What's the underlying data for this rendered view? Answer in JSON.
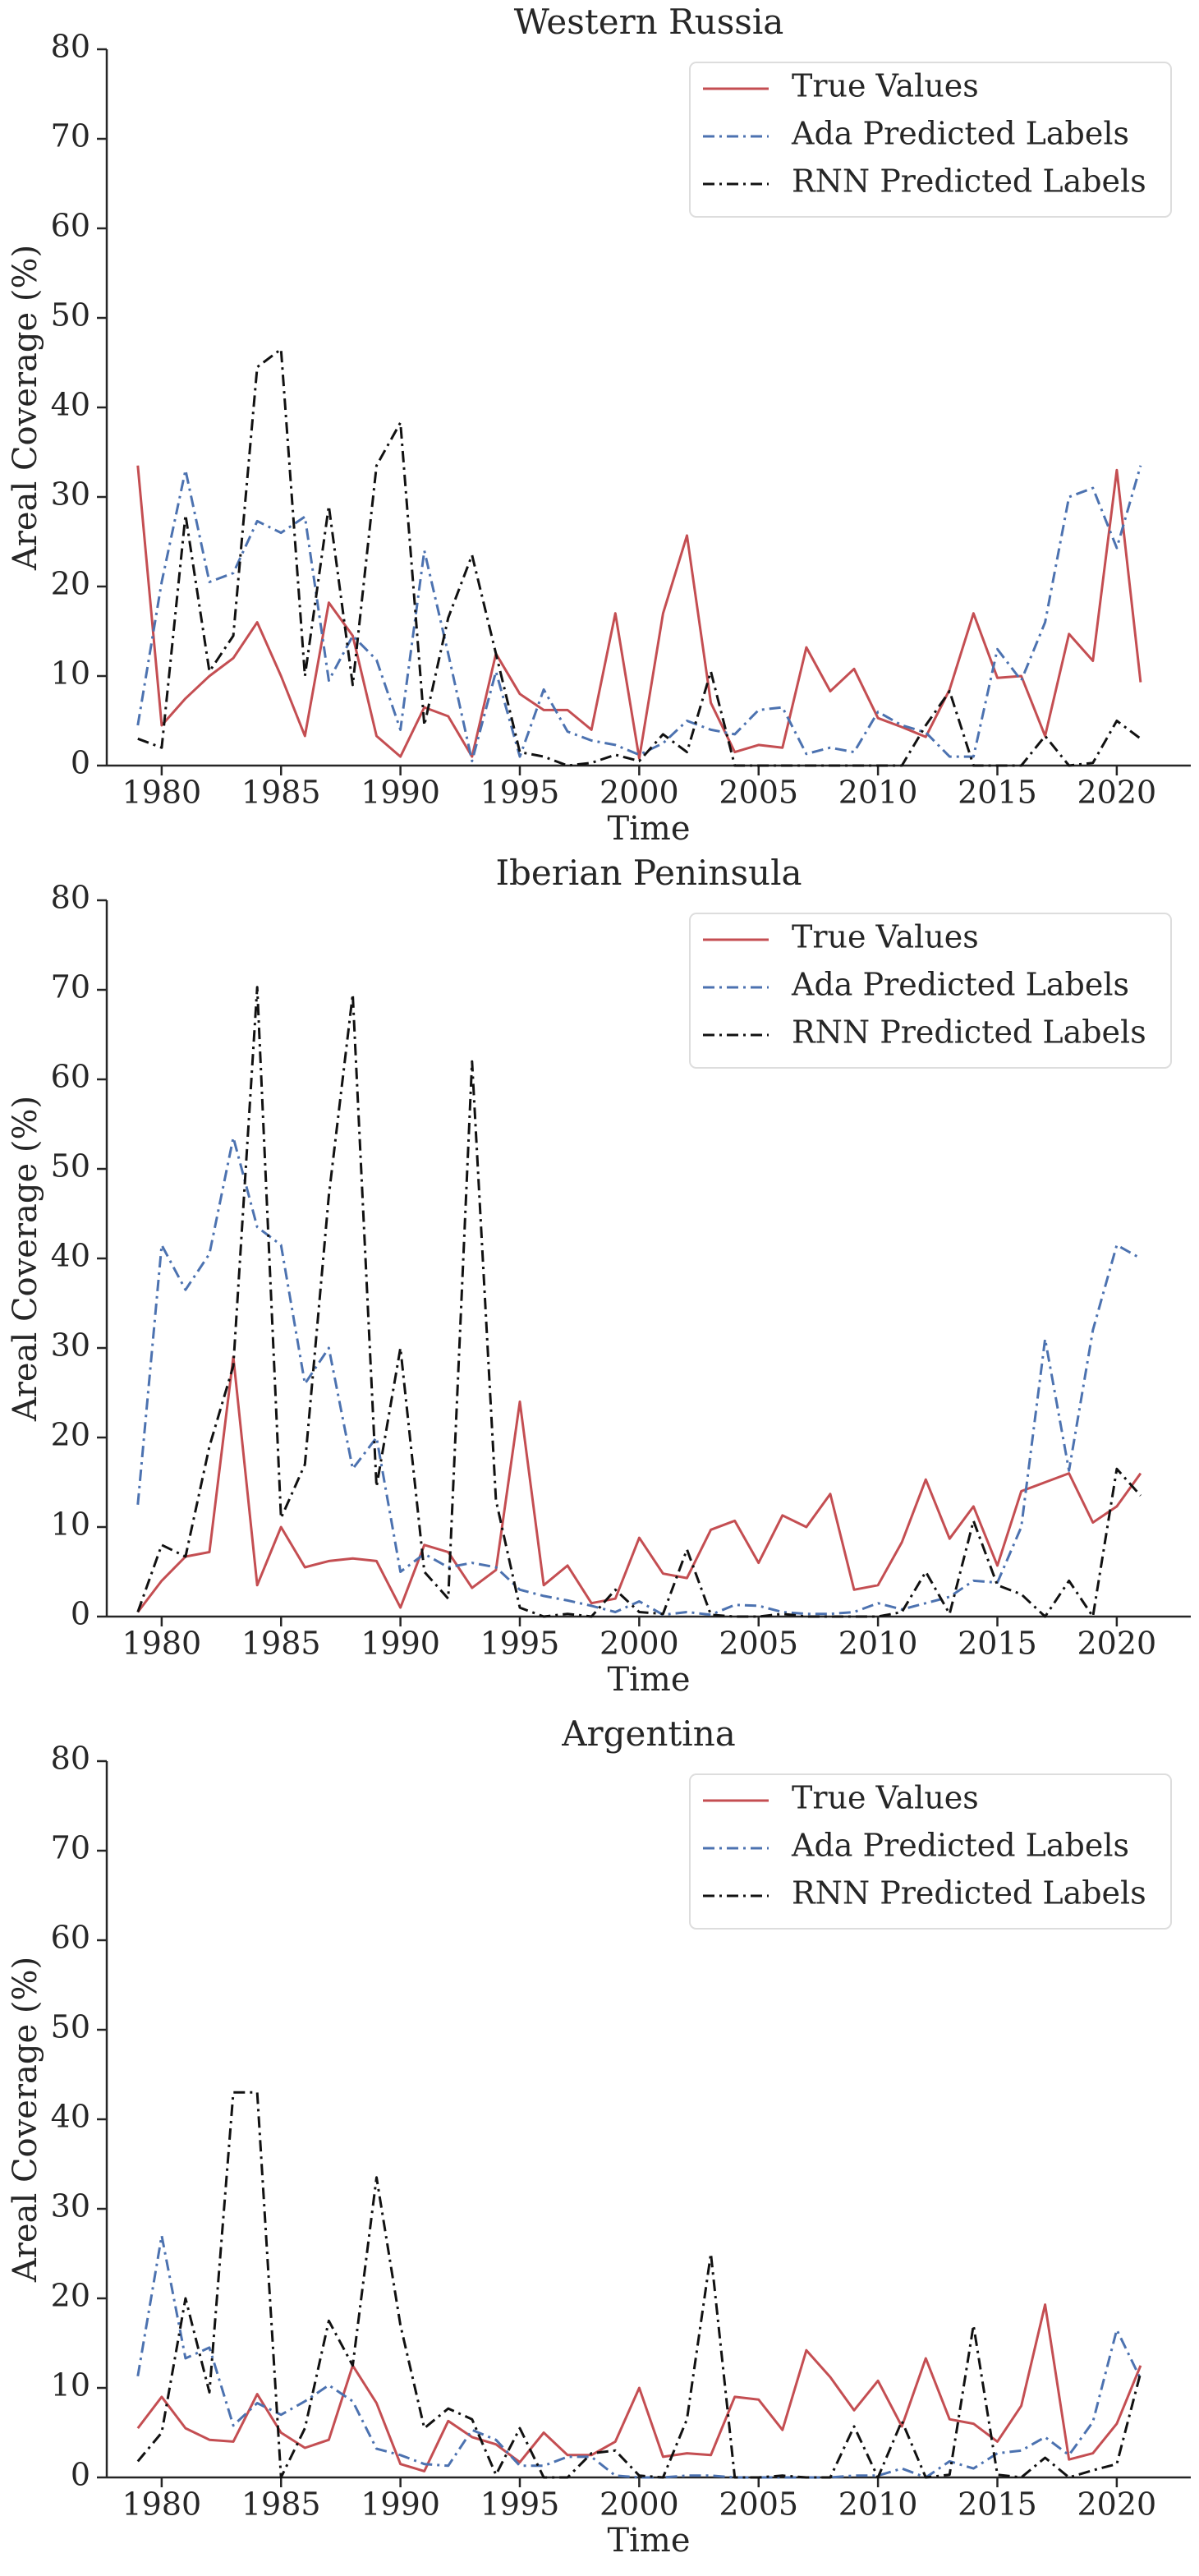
{
  "chart_data": [
    {
      "type": "line",
      "title": "Western Russia",
      "xlabel": "Time",
      "ylabel": "Areal Coverage (%)",
      "x": [
        1979,
        1980,
        1981,
        1982,
        1983,
        1984,
        1985,
        1986,
        1987,
        1988,
        1989,
        1990,
        1991,
        1992,
        1993,
        1994,
        1995,
        1996,
        1997,
        1998,
        1999,
        2000,
        2001,
        2002,
        2003,
        2004,
        2005,
        2006,
        2007,
        2008,
        2009,
        2010,
        2011,
        2012,
        2013,
        2014,
        2015,
        2016,
        2017,
        2018,
        2019,
        2020,
        2021
      ],
      "series": [
        {
          "name": "True Values",
          "color": "#c44e52",
          "style": "solid",
          "values": [
            33.5,
            4.5,
            7.5,
            10,
            12,
            16,
            10,
            3.3,
            18.2,
            14.5,
            3.3,
            1,
            6.5,
            5.5,
            1,
            12.5,
            8,
            6.2,
            6.2,
            4,
            17,
            0.8,
            17,
            25.7,
            7,
            1.5,
            2.3,
            2,
            13.2,
            8.3,
            10.8,
            5.3,
            4.3,
            3.2,
            8.5,
            17,
            9.8,
            10,
            3.3,
            14.7,
            11.7,
            33,
            9.3
          ]
        },
        {
          "name": "Ada Predicted Labels",
          "color": "#4c72b0",
          "style": "dashdot",
          "values": [
            4.5,
            20.5,
            33,
            20.5,
            21.5,
            27.3,
            26,
            27.8,
            9.5,
            14.5,
            11.8,
            4,
            24,
            12.5,
            0.5,
            10.5,
            1,
            8.5,
            3.8,
            2.8,
            2.3,
            1.2,
            2.5,
            5,
            4,
            3.5,
            6.2,
            6.5,
            1.3,
            2,
            1.5,
            6,
            4.5,
            3.7,
            1,
            1,
            13,
            9.5,
            16,
            30,
            31,
            24.3,
            33.5
          ]
        },
        {
          "name": "RNN Predicted Labels",
          "color": "#111111",
          "style": "dashdot",
          "values": [
            3,
            2,
            28,
            10.5,
            14.5,
            44.5,
            46.5,
            10,
            29,
            9,
            33.5,
            38.3,
            4.5,
            16.5,
            23.5,
            12.5,
            1.5,
            1,
            0,
            0.3,
            1.2,
            0.5,
            3.5,
            1.5,
            10.5,
            0,
            0,
            0,
            0,
            0,
            0,
            0,
            0,
            4.5,
            8.3,
            0,
            0,
            0,
            3.3,
            0,
            0.3,
            5,
            3
          ]
        }
      ],
      "xlim": [
        1977.7,
        2023.1
      ],
      "ylim": [
        0,
        80
      ],
      "xticks": [
        1980,
        1985,
        1990,
        1995,
        2000,
        2005,
        2010,
        2015,
        2020
      ],
      "yticks": [
        0,
        10,
        20,
        30,
        40,
        50,
        60,
        70,
        80
      ],
      "legend": "upper right"
    },
    {
      "type": "line",
      "title": "Iberian Peninsula",
      "xlabel": "Time",
      "ylabel": "Areal Coverage (%)",
      "x": [
        1979,
        1980,
        1981,
        1982,
        1983,
        1984,
        1985,
        1986,
        1987,
        1988,
        1989,
        1990,
        1991,
        1992,
        1993,
        1994,
        1995,
        1996,
        1997,
        1998,
        1999,
        2000,
        2001,
        2002,
        2003,
        2004,
        2005,
        2006,
        2007,
        2008,
        2009,
        2010,
        2011,
        2012,
        2013,
        2014,
        2015,
        2016,
        2017,
        2018,
        2019,
        2020,
        2021
      ],
      "series": [
        {
          "name": "True Values",
          "color": "#c44e52",
          "style": "solid",
          "values": [
            0.5,
            4,
            6.7,
            7.2,
            29,
            3.5,
            10,
            5.5,
            6.2,
            6.5,
            6.2,
            1,
            8,
            7.2,
            3.2,
            5.2,
            24,
            3.5,
            5.7,
            1.5,
            2,
            8.8,
            4.8,
            4.3,
            9.7,
            10.7,
            6,
            11.3,
            10,
            13.7,
            3,
            3.5,
            8.3,
            15.3,
            8.7,
            12.3,
            5.7,
            14,
            15,
            16,
            10.5,
            12.3,
            16
          ]
        },
        {
          "name": "Ada Predicted Labels",
          "color": "#4c72b0",
          "style": "dashdot",
          "values": [
            12.5,
            41.5,
            36.5,
            40.5,
            53.5,
            43.5,
            41.5,
            26,
            30,
            16.5,
            20,
            5,
            7,
            5.5,
            6,
            5.5,
            3,
            2.3,
            1.8,
            1.2,
            0.5,
            1.7,
            0.2,
            0.5,
            0.2,
            1.3,
            1.2,
            0.5,
            0.3,
            0.3,
            0.5,
            1.5,
            0.8,
            1.5,
            2.2,
            4,
            3.8,
            10,
            31,
            16.3,
            32,
            41.5,
            40
          ]
        },
        {
          "name": "RNN Predicted Labels",
          "color": "#111111",
          "style": "dashdot",
          "values": [
            0.5,
            8,
            6.7,
            19,
            28,
            70.3,
            11,
            17,
            47,
            69.5,
            14.5,
            30,
            5,
            2,
            62,
            13,
            1,
            0,
            0.3,
            0,
            3,
            0.5,
            0.3,
            7.5,
            0.2,
            0,
            0,
            0.3,
            0,
            0,
            0,
            0,
            0.5,
            5,
            0.3,
            10.7,
            3.5,
            2.5,
            0,
            4,
            0,
            16.5,
            13.5
          ]
        }
      ],
      "xlim": [
        1977.7,
        2023.1
      ],
      "ylim": [
        0,
        80
      ],
      "xticks": [
        1980,
        1985,
        1990,
        1995,
        2000,
        2005,
        2010,
        2015,
        2020
      ],
      "yticks": [
        0,
        10,
        20,
        30,
        40,
        50,
        60,
        70,
        80
      ],
      "legend": "upper right"
    },
    {
      "type": "line",
      "title": "Argentina",
      "xlabel": "Time",
      "ylabel": "Areal Coverage (%)",
      "x": [
        1979,
        1980,
        1981,
        1982,
        1983,
        1984,
        1985,
        1986,
        1987,
        1988,
        1989,
        1990,
        1991,
        1992,
        1993,
        1994,
        1995,
        1996,
        1997,
        1998,
        1999,
        2000,
        2001,
        2002,
        2003,
        2004,
        2005,
        2006,
        2007,
        2008,
        2009,
        2010,
        2011,
        2012,
        2013,
        2014,
        2015,
        2016,
        2017,
        2018,
        2019,
        2020,
        2021
      ],
      "series": [
        {
          "name": "True Values",
          "color": "#c44e52",
          "style": "solid",
          "values": [
            5.5,
            9,
            5.5,
            4.2,
            4,
            9.3,
            5,
            3.3,
            4.2,
            12.5,
            8.3,
            1.5,
            0.7,
            6.3,
            4.5,
            3.7,
            1.7,
            5,
            2.5,
            2.5,
            4,
            10,
            2.3,
            2.7,
            2.5,
            9,
            8.7,
            5.3,
            14.2,
            11.2,
            7.5,
            10.8,
            5.7,
            13.3,
            6.5,
            6,
            4,
            8,
            19.3,
            2,
            2.7,
            6,
            12.5
          ]
        },
        {
          "name": "Ada Predicted Labels",
          "color": "#4c72b0",
          "style": "dashdot",
          "values": [
            11.3,
            27,
            13.3,
            14.5,
            5.8,
            8.3,
            7,
            8.5,
            10.3,
            8.5,
            3.2,
            2.5,
            1.5,
            1.3,
            5.3,
            4.2,
            1.3,
            1.3,
            2.3,
            2.3,
            0.2,
            0,
            0,
            0.2,
            0.2,
            0,
            0,
            0,
            0,
            0,
            0.2,
            0.2,
            1,
            0,
            1.8,
            1,
            2.7,
            3,
            4.5,
            2.5,
            6.2,
            16.5,
            11
          ]
        },
        {
          "name": "RNN Predicted Labels",
          "color": "#111111",
          "style": "dashdot",
          "values": [
            1.8,
            5,
            20,
            9.5,
            43,
            43,
            0,
            5.5,
            17.5,
            12.5,
            33.5,
            17,
            5.5,
            7.7,
            6.5,
            0.3,
            5.5,
            0,
            0,
            2.7,
            3,
            0.2,
            0,
            6.5,
            25,
            0,
            0,
            0.2,
            0,
            0,
            5.7,
            0,
            6.3,
            0,
            0.3,
            17,
            0.3,
            0,
            2.2,
            0,
            0.8,
            1.5,
            11.7
          ]
        }
      ],
      "xlim": [
        1977.7,
        2023.1
      ],
      "ylim": [
        0,
        80
      ],
      "xticks": [
        1980,
        1985,
        1990,
        1995,
        2000,
        2005,
        2010,
        2015,
        2020
      ],
      "yticks": [
        0,
        10,
        20,
        30,
        40,
        50,
        60,
        70,
        80
      ],
      "legend": "upper right"
    }
  ]
}
